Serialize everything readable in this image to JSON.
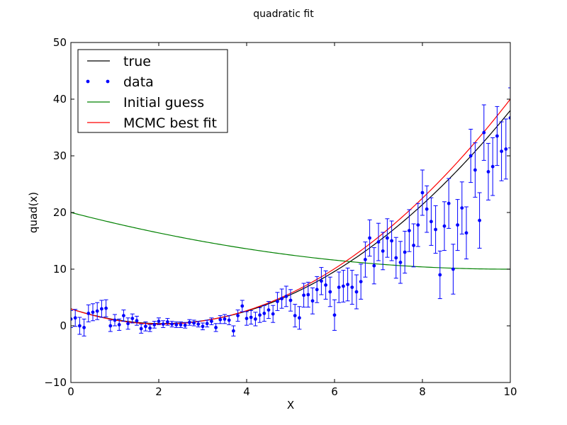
{
  "chart_data": {
    "type": "line",
    "title": "quadratic fit",
    "xlabel": "X",
    "ylabel": "quad(x)",
    "xlim": [
      0,
      10
    ],
    "ylim": [
      -10,
      50
    ],
    "xticks": [
      0,
      2,
      4,
      6,
      8,
      10
    ],
    "xtick_labels": [
      "0",
      "2",
      "4",
      "6",
      "8",
      "10"
    ],
    "yticks": [
      -10,
      0,
      10,
      20,
      30,
      40,
      50
    ],
    "ytick_labels": [
      "−10",
      "0",
      "10",
      "20",
      "30",
      "40",
      "50"
    ],
    "grid": false,
    "legend": {
      "placement": "top-left",
      "entries": [
        {
          "label": "true",
          "color": "#000000",
          "style": "line"
        },
        {
          "label": "data",
          "color": "#0000ff",
          "style": "dots"
        },
        {
          "label": "Initial guess",
          "color": "#008000",
          "style": "line"
        },
        {
          "label": "MCMC best fit",
          "color": "#ff0000",
          "style": "line"
        }
      ]
    },
    "curves": [
      {
        "label": "true",
        "color": "#000000",
        "coefficients": [
          0.6,
          -2.5,
          3.0
        ]
      },
      {
        "label": "Initial guess",
        "color": "#008000",
        "coefficients": [
          0.1,
          -2.0,
          20.0
        ]
      },
      {
        "label": "MCMC best fit",
        "color": "#ff0000",
        "coefficients": [
          0.63,
          -2.6,
          3.0
        ]
      }
    ],
    "data": {
      "label": "data",
      "color": "#0000ff",
      "points": [
        {
          "x": 0.0,
          "y": 1.2,
          "err": 1.5
        },
        {
          "x": 0.1,
          "y": 1.4,
          "err": 1.5
        },
        {
          "x": 0.2,
          "y": 0.0,
          "err": 1.5
        },
        {
          "x": 0.3,
          "y": -0.3,
          "err": 1.5
        },
        {
          "x": 0.4,
          "y": 2.2,
          "err": 1.5
        },
        {
          "x": 0.5,
          "y": 2.4,
          "err": 1.5
        },
        {
          "x": 0.6,
          "y": 2.6,
          "err": 1.5
        },
        {
          "x": 0.7,
          "y": 3.0,
          "err": 1.5
        },
        {
          "x": 0.8,
          "y": 3.1,
          "err": 1.5
        },
        {
          "x": 0.9,
          "y": 0.0,
          "err": 1.0
        },
        {
          "x": 1.0,
          "y": 1.0,
          "err": 1.0
        },
        {
          "x": 1.1,
          "y": 0.2,
          "err": 1.0
        },
        {
          "x": 1.2,
          "y": 1.8,
          "err": 1.0
        },
        {
          "x": 1.3,
          "y": 0.4,
          "err": 1.0
        },
        {
          "x": 1.4,
          "y": 1.3,
          "err": 0.8
        },
        {
          "x": 1.5,
          "y": 0.9,
          "err": 0.8
        },
        {
          "x": 1.6,
          "y": -0.5,
          "err": 0.8
        },
        {
          "x": 1.7,
          "y": -0.1,
          "err": 0.8
        },
        {
          "x": 1.8,
          "y": -0.4,
          "err": 0.6
        },
        {
          "x": 1.9,
          "y": 0.2,
          "err": 0.6
        },
        {
          "x": 2.0,
          "y": 0.8,
          "err": 0.6
        },
        {
          "x": 2.1,
          "y": 0.3,
          "err": 0.6
        },
        {
          "x": 2.2,
          "y": 0.7,
          "err": 0.6
        },
        {
          "x": 2.3,
          "y": 0.3,
          "err": 0.5
        },
        {
          "x": 2.4,
          "y": 0.2,
          "err": 0.5
        },
        {
          "x": 2.5,
          "y": 0.2,
          "err": 0.5
        },
        {
          "x": 2.6,
          "y": 0.1,
          "err": 0.5
        },
        {
          "x": 2.7,
          "y": 0.6,
          "err": 0.5
        },
        {
          "x": 2.8,
          "y": 0.5,
          "err": 0.5
        },
        {
          "x": 2.9,
          "y": 0.3,
          "err": 0.5
        },
        {
          "x": 3.0,
          "y": -0.1,
          "err": 0.6
        },
        {
          "x": 3.1,
          "y": 0.4,
          "err": 0.6
        },
        {
          "x": 3.2,
          "y": 0.8,
          "err": 0.6
        },
        {
          "x": 3.3,
          "y": -0.3,
          "err": 0.7
        },
        {
          "x": 3.4,
          "y": 1.1,
          "err": 0.7
        },
        {
          "x": 3.5,
          "y": 1.2,
          "err": 0.8
        },
        {
          "x": 3.6,
          "y": 1.0,
          "err": 0.8
        },
        {
          "x": 3.7,
          "y": -0.9,
          "err": 0.9
        },
        {
          "x": 3.8,
          "y": 1.8,
          "err": 1.0
        },
        {
          "x": 3.9,
          "y": 3.5,
          "err": 1.0
        },
        {
          "x": 4.0,
          "y": 1.3,
          "err": 1.2
        },
        {
          "x": 4.1,
          "y": 1.5,
          "err": 1.2
        },
        {
          "x": 4.2,
          "y": 1.2,
          "err": 1.2
        },
        {
          "x": 4.3,
          "y": 1.9,
          "err": 1.3
        },
        {
          "x": 4.4,
          "y": 2.2,
          "err": 1.4
        },
        {
          "x": 4.5,
          "y": 2.8,
          "err": 1.5
        },
        {
          "x": 4.6,
          "y": 2.1,
          "err": 1.5
        },
        {
          "x": 4.7,
          "y": 4.3,
          "err": 1.6
        },
        {
          "x": 4.8,
          "y": 4.8,
          "err": 1.7
        },
        {
          "x": 4.9,
          "y": 5.2,
          "err": 1.8
        },
        {
          "x": 5.0,
          "y": 4.5,
          "err": 1.9
        },
        {
          "x": 5.1,
          "y": 1.8,
          "err": 2.0
        },
        {
          "x": 5.2,
          "y": 1.4,
          "err": 2.0
        },
        {
          "x": 5.3,
          "y": 5.4,
          "err": 2.1
        },
        {
          "x": 5.4,
          "y": 5.5,
          "err": 2.2
        },
        {
          "x": 5.5,
          "y": 4.4,
          "err": 2.3
        },
        {
          "x": 5.6,
          "y": 6.4,
          "err": 2.3
        },
        {
          "x": 5.7,
          "y": 7.9,
          "err": 2.4
        },
        {
          "x": 5.8,
          "y": 7.2,
          "err": 2.5
        },
        {
          "x": 5.9,
          "y": 6.0,
          "err": 2.6
        },
        {
          "x": 6.0,
          "y": 1.9,
          "err": 2.7
        },
        {
          "x": 6.1,
          "y": 6.8,
          "err": 2.7
        },
        {
          "x": 6.2,
          "y": 7.0,
          "err": 2.8
        },
        {
          "x": 6.3,
          "y": 7.3,
          "err": 2.9
        },
        {
          "x": 6.4,
          "y": 6.8,
          "err": 3.0
        },
        {
          "x": 6.5,
          "y": 6.0,
          "err": 3.0
        },
        {
          "x": 6.6,
          "y": 7.8,
          "err": 3.1
        },
        {
          "x": 6.7,
          "y": 11.7,
          "err": 3.1
        },
        {
          "x": 6.8,
          "y": 15.5,
          "err": 3.2
        },
        {
          "x": 6.9,
          "y": 10.6,
          "err": 3.2
        },
        {
          "x": 7.0,
          "y": 14.8,
          "err": 3.3
        },
        {
          "x": 7.1,
          "y": 13.2,
          "err": 3.3
        },
        {
          "x": 7.2,
          "y": 15.5,
          "err": 3.4
        },
        {
          "x": 7.3,
          "y": 15.0,
          "err": 3.5
        },
        {
          "x": 7.4,
          "y": 12.0,
          "err": 3.6
        },
        {
          "x": 7.5,
          "y": 11.2,
          "err": 3.7
        },
        {
          "x": 7.6,
          "y": 13.0,
          "err": 3.7
        },
        {
          "x": 7.7,
          "y": 16.8,
          "err": 3.7
        },
        {
          "x": 7.8,
          "y": 14.2,
          "err": 3.8
        },
        {
          "x": 7.9,
          "y": 17.8,
          "err": 3.8
        },
        {
          "x": 8.0,
          "y": 23.5,
          "err": 4.0
        },
        {
          "x": 8.1,
          "y": 20.6,
          "err": 4.1
        },
        {
          "x": 8.2,
          "y": 18.4,
          "err": 4.2
        },
        {
          "x": 8.3,
          "y": 17.0,
          "err": 4.2
        },
        {
          "x": 8.4,
          "y": 9.0,
          "err": 4.2
        },
        {
          "x": 8.5,
          "y": 17.6,
          "err": 4.3
        },
        {
          "x": 8.6,
          "y": 21.6,
          "err": 4.4
        },
        {
          "x": 8.7,
          "y": 10.0,
          "err": 4.4
        },
        {
          "x": 8.8,
          "y": 17.8,
          "err": 4.5
        },
        {
          "x": 8.9,
          "y": 20.8,
          "err": 4.6
        },
        {
          "x": 9.0,
          "y": 16.4,
          "err": 4.6
        },
        {
          "x": 9.1,
          "y": 30.0,
          "err": 4.7
        },
        {
          "x": 9.2,
          "y": 27.5,
          "err": 4.8
        },
        {
          "x": 9.3,
          "y": 18.6,
          "err": 4.9
        },
        {
          "x": 9.4,
          "y": 34.1,
          "err": 4.9
        },
        {
          "x": 9.5,
          "y": 27.2,
          "err": 5.0
        },
        {
          "x": 9.6,
          "y": 28.1,
          "err": 5.1
        },
        {
          "x": 9.7,
          "y": 33.5,
          "err": 5.2
        },
        {
          "x": 9.8,
          "y": 30.8,
          "err": 5.2
        },
        {
          "x": 9.9,
          "y": 31.2,
          "err": 5.3
        },
        {
          "x": 10.0,
          "y": 36.7,
          "err": 5.3
        }
      ]
    }
  }
}
